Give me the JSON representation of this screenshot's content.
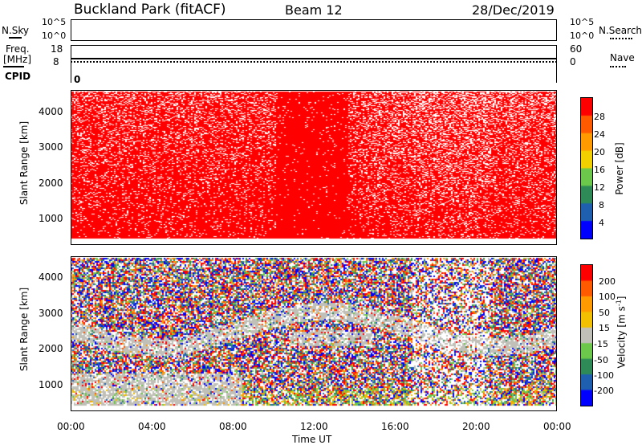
{
  "header": {
    "station": "Buckland Park (fitACF)",
    "beam": "Beam 12",
    "date": "28/Dec/2019"
  },
  "nsky_panel": {
    "left_label": "N.Sky",
    "left_ticks": [
      "10^5",
      "10^0"
    ],
    "right_label": "N.Search",
    "right_ticks": [
      "10^5",
      "10^0"
    ]
  },
  "freq_panel": {
    "left_label_1": "Freq.",
    "left_label_2": "[MHz]",
    "left_ticks": [
      "18",
      "8"
    ],
    "right_label": "Nave",
    "right_ticks": [
      "60",
      "0"
    ],
    "cpid_label": "CPID",
    "cpid_value": "0"
  },
  "chart_data": [
    {
      "type": "heatmap",
      "quantity": "power",
      "ylabel": "Slant Range [km]",
      "yticks": [
        "4000",
        "3000",
        "2000",
        "1000"
      ],
      "ylim": [
        180,
        4500
      ],
      "xlim": [
        "00:00",
        "24:00"
      ],
      "colorbar": {
        "label": "Power [dB]",
        "ticks": [
          "28",
          "24",
          "20",
          "16",
          "12",
          "8",
          "4"
        ],
        "range": [
          0,
          32
        ],
        "colors": [
          "#0000ff",
          "#1e5fb0",
          "#2e8b57",
          "#6cc84a",
          "#f2d000",
          "#ff9a00",
          "#ff5a00",
          "#ff0000"
        ]
      }
    },
    {
      "type": "heatmap",
      "quantity": "velocity",
      "ylabel": "Slant Range [km]",
      "yticks": [
        "4000",
        "3000",
        "2000",
        "1000"
      ],
      "ylim": [
        180,
        4500
      ],
      "xlim": [
        "00:00",
        "24:00"
      ],
      "xticks": [
        "00:00",
        "04:00",
        "08:00",
        "12:00",
        "16:00",
        "20:00",
        "00:00"
      ],
      "xlabel": "Time UT",
      "colorbar": {
        "label": "Velocity [m s-1]",
        "ticks": [
          "200",
          "100",
          "50",
          "15",
          "-15",
          "-50",
          "-100",
          "-200"
        ],
        "range": [
          -250,
          250
        ],
        "colors": [
          "#ff0000",
          "#ff5a00",
          "#ff9a00",
          "#f2c000",
          "#c0c0b8",
          "#6cc84a",
          "#2e8b57",
          "#1e5fb0",
          "#0000ff"
        ]
      }
    }
  ]
}
